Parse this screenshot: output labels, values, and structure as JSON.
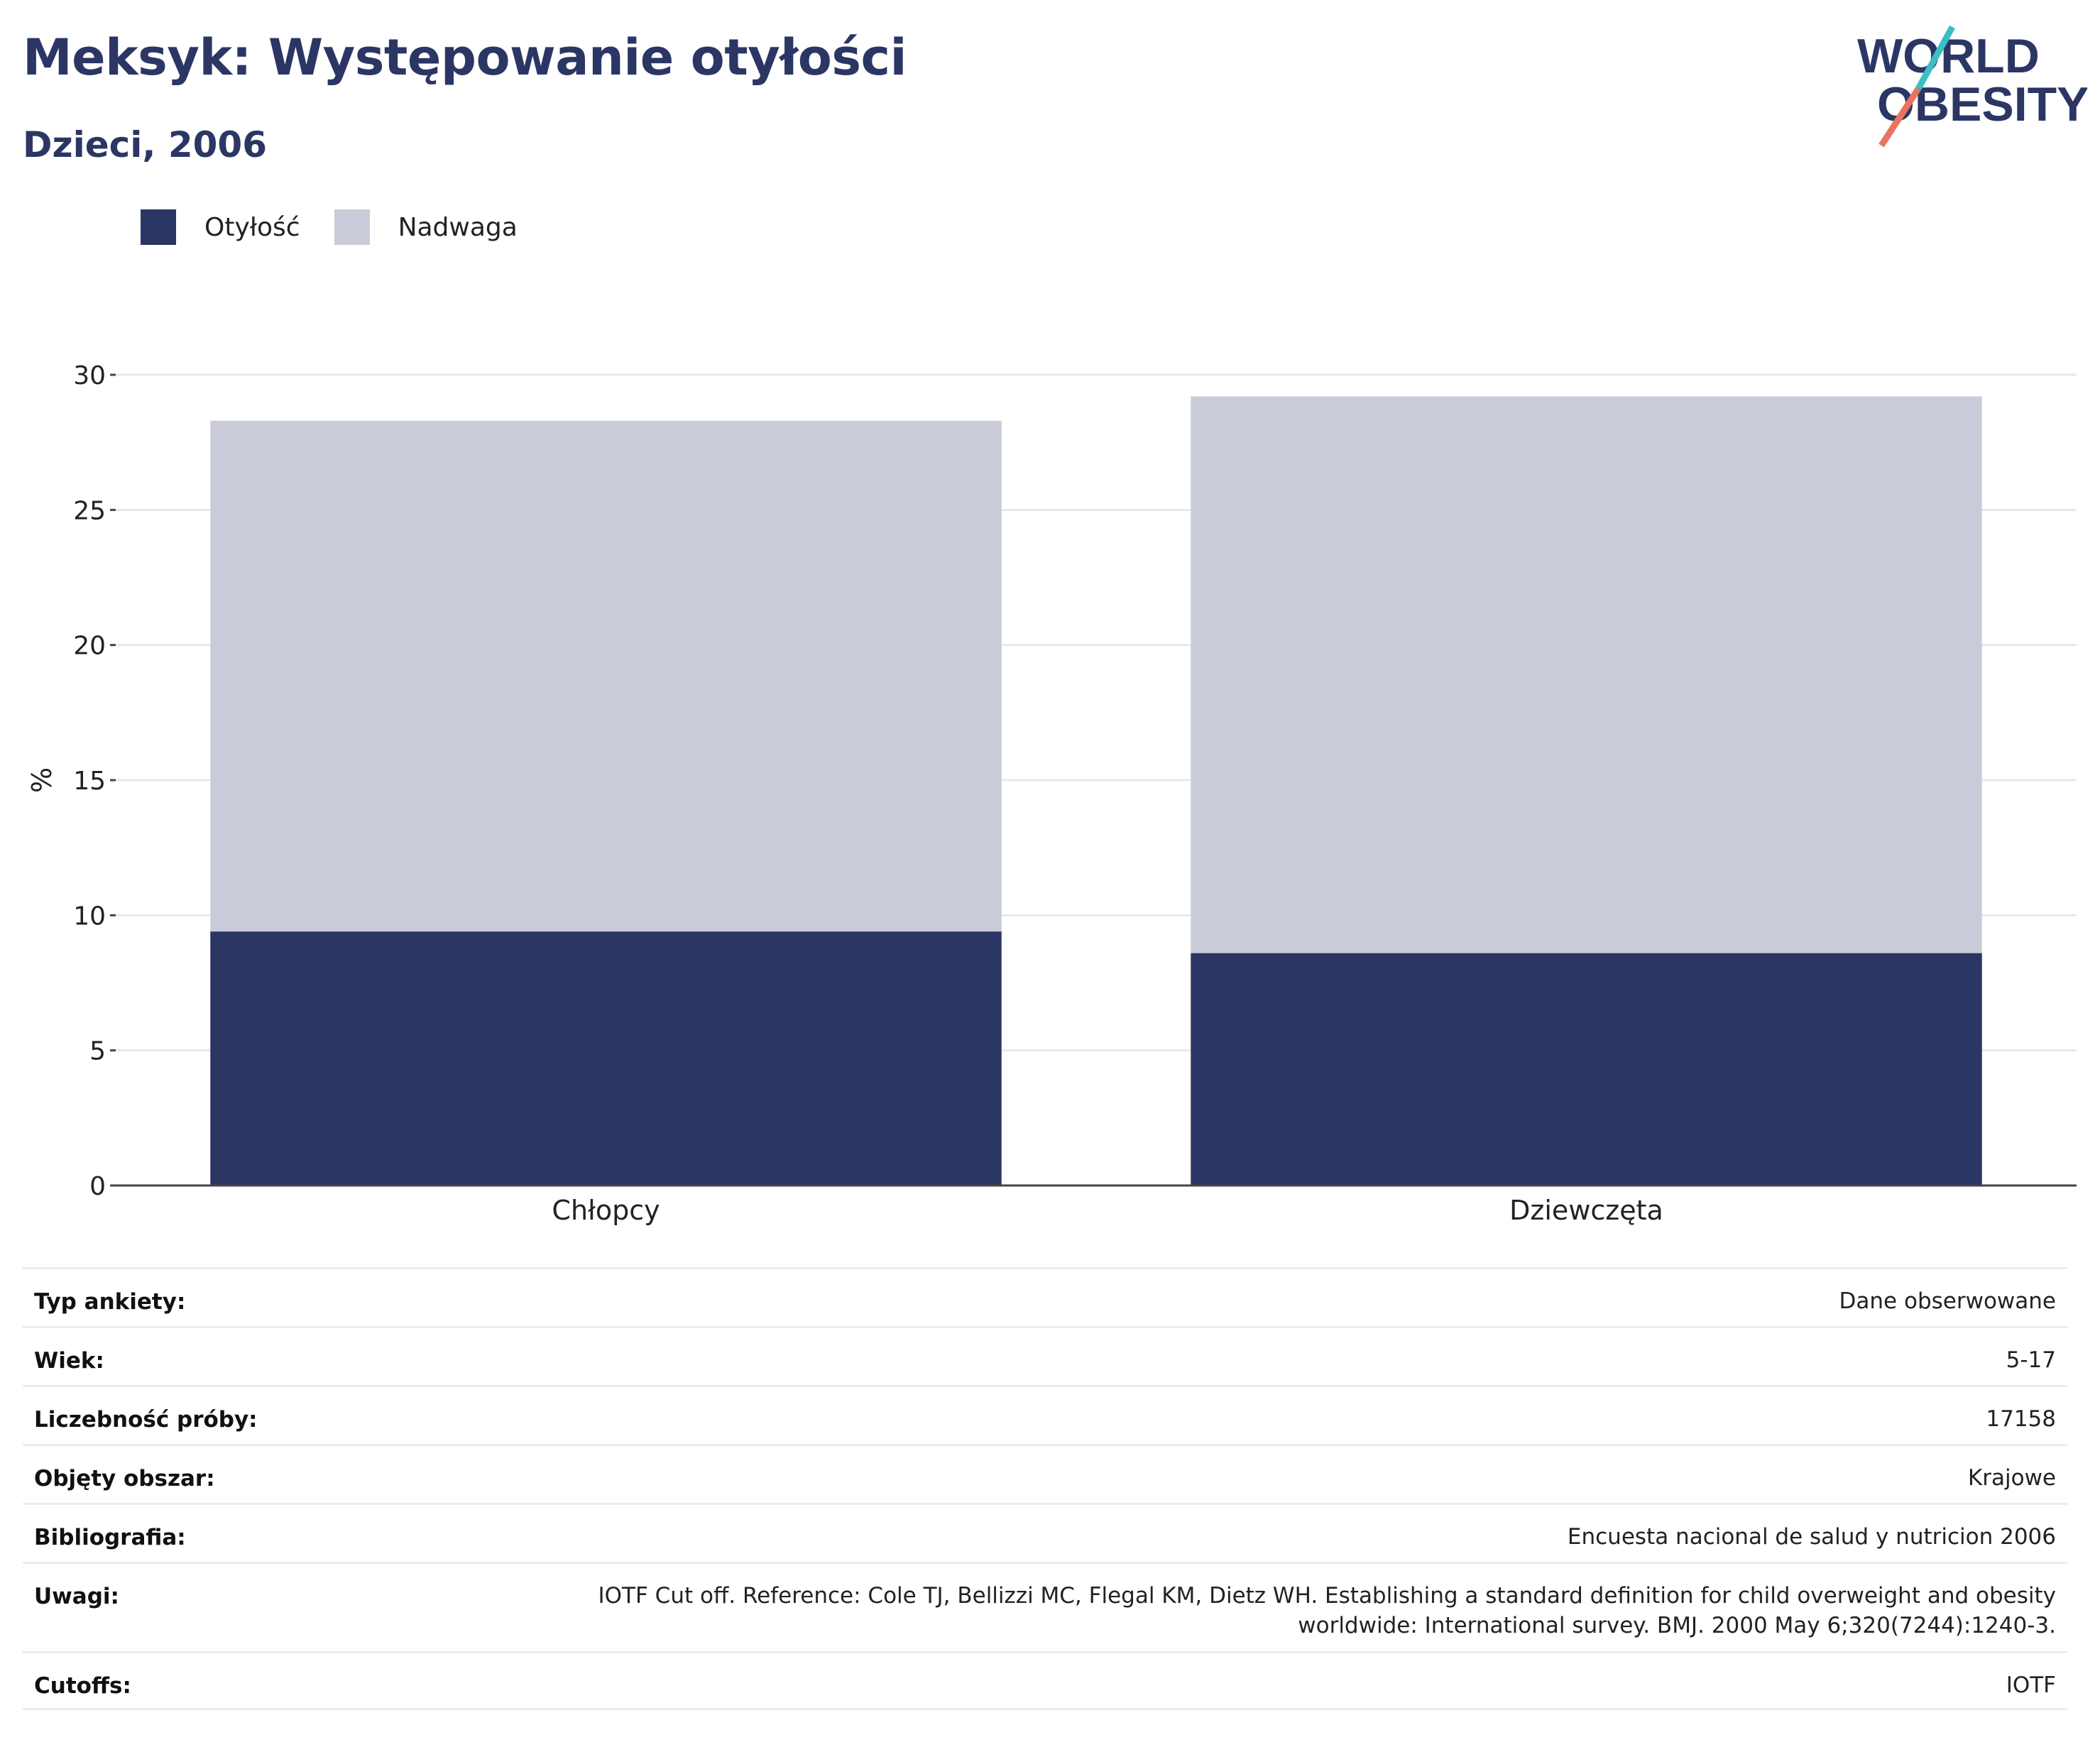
{
  "header": {
    "title": "Meksyk: Występowanie otyłości",
    "subtitle": "Dzieci, 2006",
    "logo_text_line1": "WORLD",
    "logo_text_line2": "OBESITY"
  },
  "legend": [
    {
      "label": "Otyłość",
      "color": "#2b3664"
    },
    {
      "label": "Nadwaga",
      "color": "#c9ccd8"
    }
  ],
  "chart_data": {
    "type": "bar",
    "stacked": true,
    "categories": [
      "Chłopcy",
      "Dziewczęta"
    ],
    "series": [
      {
        "name": "Otyłość",
        "values": [
          9.4,
          8.6
        ],
        "color": "#2b3664"
      },
      {
        "name": "Nadwaga",
        "values": [
          18.9,
          20.6
        ],
        "color": "#c9ccd8"
      }
    ],
    "ylabel": "%",
    "ylim": [
      0,
      30
    ],
    "yticks": [
      0,
      5,
      10,
      15,
      20,
      25,
      30
    ],
    "grid": true,
    "legend_position": "top-left"
  },
  "meta": [
    {
      "key": "Typ ankiety:",
      "value": "Dane obserwowane"
    },
    {
      "key": "Wiek:",
      "value": "5-17"
    },
    {
      "key": "Liczebność próby:",
      "value": "17158"
    },
    {
      "key": "Objęty obszar:",
      "value": "Krajowe"
    },
    {
      "key": "Bibliografia:",
      "value": "Encuesta nacional de salud y nutricion 2006"
    },
    {
      "key": "Uwagi:",
      "value_line1": "IOTF Cut off. Reference: Cole TJ, Bellizzi MC, Flegal KM, Dietz WH. Establishing a standard definition for child overweight and obesity",
      "value_line2": "worldwide: International survey. BMJ. 2000 May 6;320(7244):1240-3."
    },
    {
      "key": "Cutoffs:",
      "value": "IOTF"
    }
  ]
}
